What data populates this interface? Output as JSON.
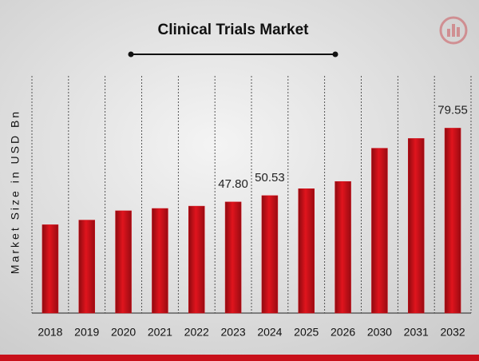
{
  "chart_data": {
    "type": "bar",
    "title": "Clinical Trials Market",
    "y_label": "Market Size in USD Bn",
    "categories": [
      "2018",
      "2019",
      "2020",
      "2021",
      "2022",
      "2023",
      "2024",
      "2025",
      "2026",
      "2030",
      "2031",
      "2032"
    ],
    "values": [
      38,
      40,
      44,
      45,
      46,
      47.8,
      50.53,
      53.5,
      56.6,
      70.9,
      75.1,
      79.55
    ],
    "value_labels": [
      null,
      null,
      null,
      null,
      null,
      "47.80",
      "50.53",
      null,
      null,
      null,
      null,
      "79.55"
    ],
    "color": "#d0121b",
    "ylim": [
      0,
      90
    ]
  }
}
